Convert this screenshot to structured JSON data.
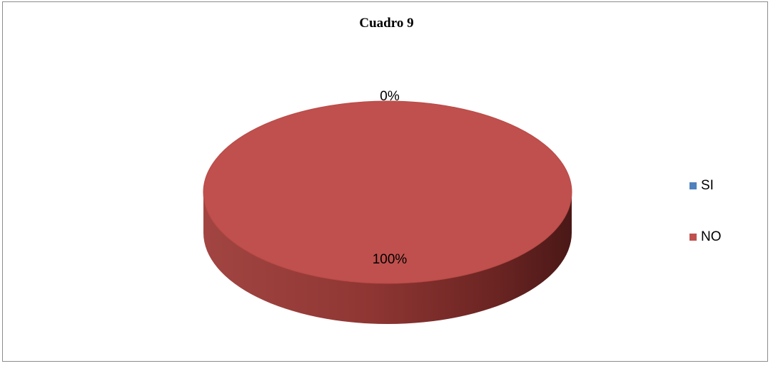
{
  "chart_data": {
    "type": "pie",
    "title": "Cuadro 9",
    "categories": [
      "SI",
      "NO"
    ],
    "values": [
      0,
      100
    ],
    "labels": [
      "0%",
      "100%"
    ],
    "colors": [
      "#4f81bd",
      "#c0504d"
    ],
    "legend_position": "right",
    "three_d": true
  }
}
